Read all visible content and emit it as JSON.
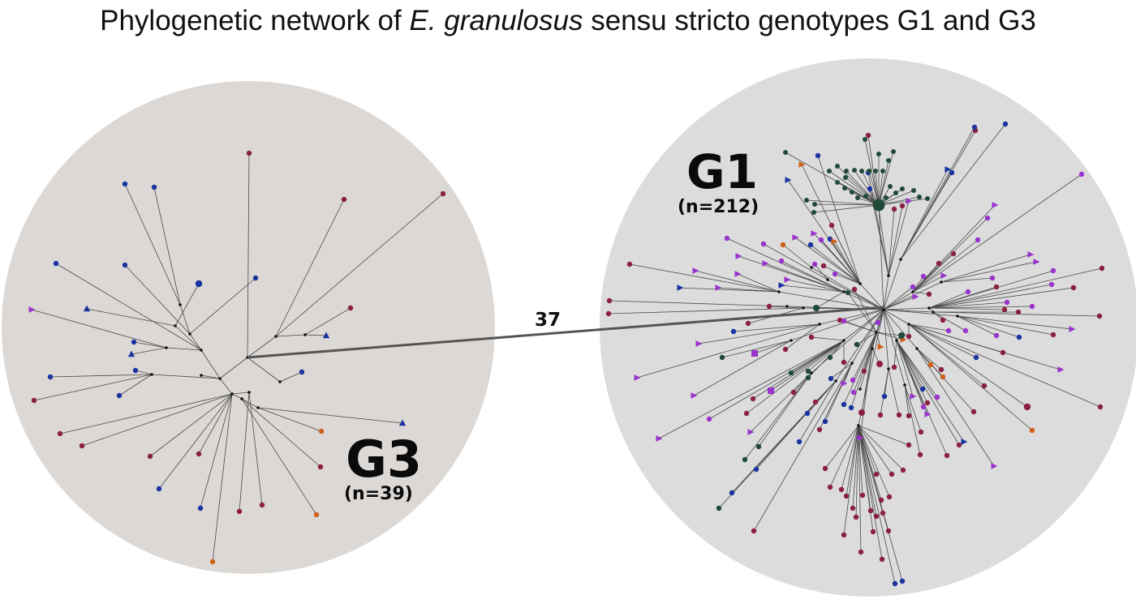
{
  "title": {
    "prefix": "Phylogenetic network of ",
    "species": "E. granulosus",
    "suffix": " sensu stricto genotypes G1 and G3"
  },
  "colors": {
    "background_circle_g3": "#dcd8d5",
    "background_circle_g1": "#dcdcdc",
    "edge": "#4a4a4a",
    "link": "#555555",
    "blue": "#1a33a0",
    "maroon": "#8b2040",
    "purple": "#9a33cc",
    "dark_green": "#1f4a38",
    "orange": "#d0601a",
    "node": "#111111"
  },
  "g3": {
    "label": "G3",
    "count": "(n=39)"
  },
  "g1": {
    "label": "G1",
    "count": "(n=212)"
  },
  "link": {
    "distance": "37"
  }
}
